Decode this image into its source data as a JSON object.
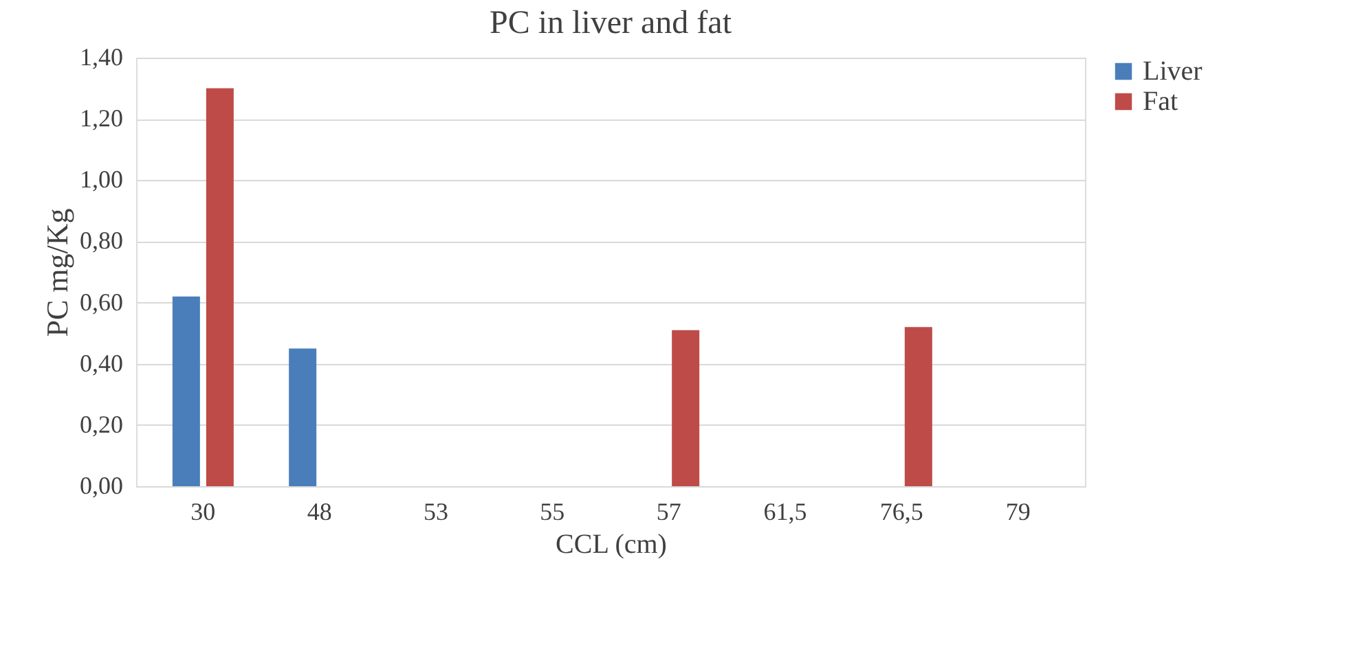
{
  "chart_data": {
    "type": "bar",
    "title": "PC in liver and fat",
    "xlabel": "CCL (cm)",
    "ylabel": "PC mg/Kg",
    "categories": [
      "30",
      "48",
      "53",
      "55",
      "57",
      "61,5",
      "76,5",
      "79"
    ],
    "series": [
      {
        "name": "Liver",
        "color": "#4a7ebb",
        "values": [
          0.62,
          0.45,
          null,
          null,
          null,
          null,
          null,
          null
        ]
      },
      {
        "name": "Fat",
        "color": "#be4b48",
        "values": [
          1.3,
          null,
          null,
          null,
          0.51,
          null,
          0.52,
          null
        ]
      }
    ],
    "ylim": [
      0,
      1.4
    ],
    "yticks": [
      {
        "value": 0,
        "label": "0,00"
      },
      {
        "value": 0.2,
        "label": "0,20"
      },
      {
        "value": 0.4,
        "label": "0,40"
      },
      {
        "value": 0.6,
        "label": "0,60"
      },
      {
        "value": 0.8,
        "label": "0,80"
      },
      {
        "value": 1.0,
        "label": "1,00"
      },
      {
        "value": 1.2,
        "label": "1,20"
      },
      {
        "value": 1.4,
        "label": "1,40"
      }
    ],
    "grid": "y",
    "legend": "right"
  }
}
